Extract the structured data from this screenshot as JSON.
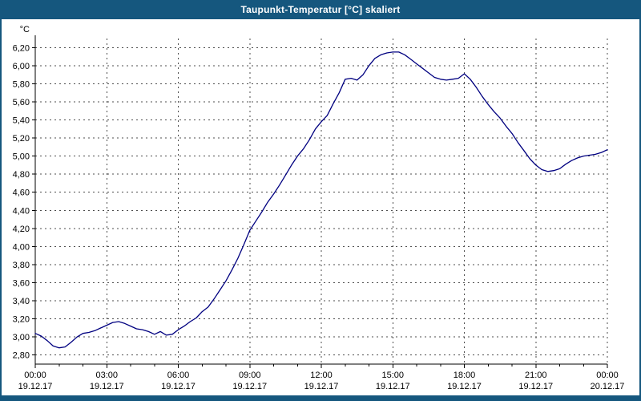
{
  "window": {
    "title": "Taupunkt-Temperatur [°C] skaliert"
  },
  "colors": {
    "header_bg": "#15577e",
    "line": "#000080",
    "grid": "#4d4d4d",
    "axis": "#000000",
    "background": "#ffffff",
    "text": "#000000"
  },
  "chart_data": {
    "type": "line",
    "title": "Taupunkt-Temperatur [°C] skaliert",
    "xlabel": "",
    "ylabel": "°C",
    "ylim": [
      2.7,
      6.3
    ],
    "xlim_hours": [
      0,
      24
    ],
    "grid": "dashed",
    "legend": "none",
    "y_tick_values": [
      2.8,
      3.0,
      3.2,
      3.4,
      3.6,
      3.8,
      4.0,
      4.2,
      4.4,
      4.6,
      4.8,
      5.0,
      5.2,
      5.4,
      5.6,
      5.8,
      6.0,
      6.2
    ],
    "y_tick_labels": [
      "2,80",
      "3,00",
      "3,20",
      "3,40",
      "3,60",
      "3,80",
      "4,00",
      "4,20",
      "4,40",
      "4,60",
      "4,80",
      "5,00",
      "5,20",
      "5,40",
      "5,60",
      "5,80",
      "6,00",
      "6,20"
    ],
    "x_tick_hours": [
      0,
      3,
      6,
      9,
      12,
      15,
      18,
      21,
      24
    ],
    "x_tick_labels": [
      "00:00",
      "03:00",
      "06:00",
      "09:00",
      "12:00",
      "15:00",
      "18:00",
      "21:00",
      "00:00"
    ],
    "x_date_labels": [
      "19.12.17",
      "19.12.17",
      "19.12.17",
      "19.12.17",
      "19.12.17",
      "19.12.17",
      "19.12.17",
      "19.12.17",
      "20.12.17"
    ],
    "series": [
      {
        "name": "Taupunkt-Temperatur",
        "points": [
          [
            0,
            3.04
          ],
          [
            0.25,
            3.01
          ],
          [
            0.5,
            2.96
          ],
          [
            0.75,
            2.9
          ],
          [
            1,
            2.88
          ],
          [
            1.25,
            2.89
          ],
          [
            1.5,
            2.94
          ],
          [
            1.75,
            3.0
          ],
          [
            2,
            3.04
          ],
          [
            2.25,
            3.05
          ],
          [
            2.5,
            3.07
          ],
          [
            2.75,
            3.1
          ],
          [
            3,
            3.13
          ],
          [
            3.25,
            3.16
          ],
          [
            3.5,
            3.17
          ],
          [
            3.75,
            3.15
          ],
          [
            4,
            3.12
          ],
          [
            4.25,
            3.09
          ],
          [
            4.5,
            3.08
          ],
          [
            4.75,
            3.06
          ],
          [
            5,
            3.03
          ],
          [
            5.25,
            3.06
          ],
          [
            5.5,
            3.02
          ],
          [
            5.75,
            3.03
          ],
          [
            6,
            3.08
          ],
          [
            6.25,
            3.12
          ],
          [
            6.5,
            3.17
          ],
          [
            6.75,
            3.21
          ],
          [
            7,
            3.28
          ],
          [
            7.25,
            3.33
          ],
          [
            7.5,
            3.42
          ],
          [
            7.75,
            3.52
          ],
          [
            8,
            3.62
          ],
          [
            8.25,
            3.74
          ],
          [
            8.5,
            3.87
          ],
          [
            8.75,
            4.02
          ],
          [
            9,
            4.18
          ],
          [
            9.25,
            4.28
          ],
          [
            9.5,
            4.38
          ],
          [
            9.75,
            4.49
          ],
          [
            10,
            4.58
          ],
          [
            10.25,
            4.68
          ],
          [
            10.5,
            4.79
          ],
          [
            10.75,
            4.9
          ],
          [
            11,
            5.0
          ],
          [
            11.25,
            5.08
          ],
          [
            11.5,
            5.18
          ],
          [
            11.75,
            5.3
          ],
          [
            12,
            5.38
          ],
          [
            12.25,
            5.45
          ],
          [
            12.5,
            5.58
          ],
          [
            12.75,
            5.7
          ],
          [
            13,
            5.85
          ],
          [
            13.25,
            5.86
          ],
          [
            13.5,
            5.84
          ],
          [
            13.75,
            5.9
          ],
          [
            14,
            6.0
          ],
          [
            14.25,
            6.08
          ],
          [
            14.5,
            6.12
          ],
          [
            14.75,
            6.14
          ],
          [
            15,
            6.15
          ],
          [
            15.25,
            6.15
          ],
          [
            15.5,
            6.12
          ],
          [
            15.75,
            6.07
          ],
          [
            16,
            6.02
          ],
          [
            16.25,
            5.97
          ],
          [
            16.5,
            5.92
          ],
          [
            16.75,
            5.87
          ],
          [
            17,
            5.85
          ],
          [
            17.25,
            5.84
          ],
          [
            17.5,
            5.85
          ],
          [
            17.75,
            5.86
          ],
          [
            18,
            5.91
          ],
          [
            18.25,
            5.85
          ],
          [
            18.5,
            5.76
          ],
          [
            18.75,
            5.66
          ],
          [
            19,
            5.57
          ],
          [
            19.25,
            5.49
          ],
          [
            19.5,
            5.42
          ],
          [
            19.75,
            5.33
          ],
          [
            20,
            5.25
          ],
          [
            20.25,
            5.15
          ],
          [
            20.5,
            5.06
          ],
          [
            20.75,
            4.97
          ],
          [
            21,
            4.9
          ],
          [
            21.25,
            4.85
          ],
          [
            21.5,
            4.83
          ],
          [
            21.75,
            4.84
          ],
          [
            22,
            4.86
          ],
          [
            22.25,
            4.91
          ],
          [
            22.5,
            4.95
          ],
          [
            22.75,
            4.98
          ],
          [
            23,
            5.0
          ],
          [
            23.25,
            5.01
          ],
          [
            23.5,
            5.02
          ],
          [
            23.75,
            5.04
          ],
          [
            24,
            5.07
          ]
        ]
      }
    ]
  }
}
